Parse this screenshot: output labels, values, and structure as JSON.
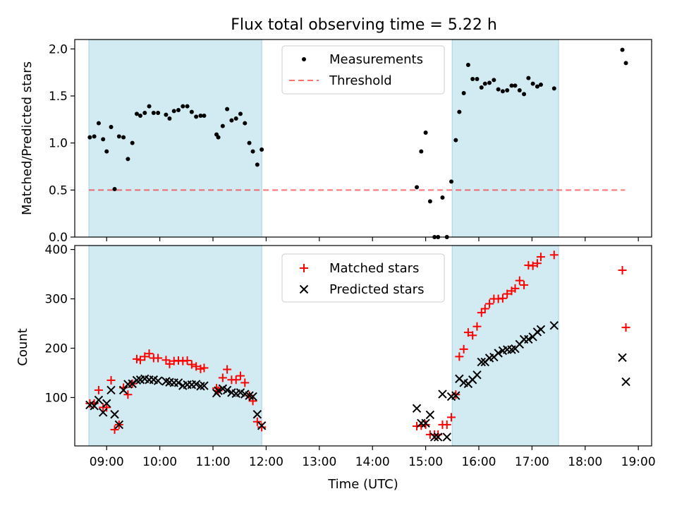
{
  "title": "Flux total observing time = 5.22 h",
  "colors": {
    "shade": "#add8e6",
    "threshold": "#ff0000",
    "matched": "#ff0000",
    "predicted": "#000000",
    "measurement": "#000000"
  },
  "chart_data": [
    {
      "type": "scatter",
      "panel": "top",
      "ylabel": "Matched/Predicted stars",
      "xlim": [
        "08:24",
        "19:15"
      ],
      "ylim": [
        0,
        2.1
      ],
      "yticks": [
        0.0,
        0.5,
        1.0,
        1.5,
        2.0
      ],
      "ytick_labels": [
        "0.0",
        "0.5",
        "1.0",
        "1.5",
        "2.0"
      ],
      "shaded_intervals": [
        [
          "08:40",
          "11:55"
        ],
        [
          "15:30",
          "17:30"
        ]
      ],
      "legend": {
        "position": "top-center",
        "entries": [
          "Measurements",
          "Threshold"
        ]
      },
      "threshold": {
        "name": "Threshold",
        "value": 0.5,
        "x_range": [
          "08:40",
          "18:45"
        ]
      },
      "series": [
        {
          "name": "Measurements",
          "points": [
            [
              "08:41",
              1.06
            ],
            [
              "08:46",
              1.07
            ],
            [
              "08:51",
              1.21
            ],
            [
              "08:56",
              1.04
            ],
            [
              "09:00",
              0.91
            ],
            [
              "09:05",
              1.17
            ],
            [
              "09:09",
              0.51
            ],
            [
              "09:14",
              1.07
            ],
            [
              "09:19",
              1.06
            ],
            [
              "09:24",
              0.83
            ],
            [
              "09:29",
              1.0
            ],
            [
              "09:34",
              1.31
            ],
            [
              "09:38",
              1.29
            ],
            [
              "09:43",
              1.32
            ],
            [
              "09:48",
              1.39
            ],
            [
              "09:53",
              1.32
            ],
            [
              "09:58",
              1.32
            ],
            [
              "10:07",
              1.3
            ],
            [
              "10:11",
              1.26
            ],
            [
              "10:16",
              1.34
            ],
            [
              "10:21",
              1.35
            ],
            [
              "10:26",
              1.39
            ],
            [
              "10:31",
              1.39
            ],
            [
              "10:36",
              1.33
            ],
            [
              "10:41",
              1.28
            ],
            [
              "10:46",
              1.29
            ],
            [
              "10:50",
              1.29
            ],
            [
              "11:04",
              1.09
            ],
            [
              "11:06",
              1.06
            ],
            [
              "11:11",
              1.18
            ],
            [
              "11:16",
              1.36
            ],
            [
              "11:21",
              1.24
            ],
            [
              "11:26",
              1.26
            ],
            [
              "11:31",
              1.31
            ],
            [
              "11:36",
              1.21
            ],
            [
              "11:41",
              1.0
            ],
            [
              "11:45",
              0.91
            ],
            [
              "11:50",
              0.77
            ],
            [
              "11:55",
              0.93
            ],
            [
              "14:50",
              0.53
            ],
            [
              "14:55",
              0.91
            ],
            [
              "15:00",
              1.11
            ],
            [
              "15:05",
              0.38
            ],
            [
              "15:10",
              0.0
            ],
            [
              "15:14",
              0.0
            ],
            [
              "15:19",
              0.42
            ],
            [
              "15:24",
              0.0
            ],
            [
              "15:29",
              0.59
            ],
            [
              "15:34",
              1.03
            ],
            [
              "15:38",
              1.33
            ],
            [
              "15:43",
              1.53
            ],
            [
              "15:48",
              1.83
            ],
            [
              "15:53",
              1.68
            ],
            [
              "15:58",
              1.68
            ],
            [
              "16:03",
              1.59
            ],
            [
              "16:07",
              1.63
            ],
            [
              "16:12",
              1.64
            ],
            [
              "16:17",
              1.67
            ],
            [
              "16:22",
              1.57
            ],
            [
              "16:27",
              1.55
            ],
            [
              "16:32",
              1.56
            ],
            [
              "16:37",
              1.61
            ],
            [
              "16:41",
              1.61
            ],
            [
              "16:46",
              1.56
            ],
            [
              "16:51",
              1.52
            ],
            [
              "16:56",
              1.69
            ],
            [
              "17:01",
              1.63
            ],
            [
              "17:06",
              1.6
            ],
            [
              "17:10",
              1.62
            ],
            [
              "17:25",
              1.58
            ],
            [
              "18:42",
              1.99
            ],
            [
              "18:46",
              1.85
            ]
          ]
        }
      ]
    },
    {
      "type": "scatter",
      "panel": "bottom",
      "xlabel": "Time (UTC)",
      "ylabel": "Count",
      "xlim": [
        "08:24",
        "19:15"
      ],
      "ylim": [
        2,
        408
      ],
      "yticks": [
        100,
        200,
        300,
        400
      ],
      "ytick_labels": [
        "100",
        "200",
        "300",
        "400"
      ],
      "xticks": [
        "09:00",
        "10:00",
        "11:00",
        "12:00",
        "13:00",
        "14:00",
        "15:00",
        "16:00",
        "17:00",
        "18:00",
        "19:00"
      ],
      "xtick_labels": [
        "09:00",
        "10:00",
        "11:00",
        "12:00",
        "13:00",
        "14:00",
        "15:00",
        "16:00",
        "17:00",
        "18:00",
        "19:00"
      ],
      "shaded_intervals": [
        [
          "08:40",
          "11:55"
        ],
        [
          "15:30",
          "17:30"
        ]
      ],
      "legend": {
        "position": "top-center",
        "entries": [
          "Matched stars",
          "Predicted stars"
        ]
      },
      "series": [
        {
          "name": "Matched stars",
          "marker": "plus",
          "points": [
            [
              "08:41",
              88
            ],
            [
              "08:46",
              88
            ],
            [
              "08:51",
              115
            ],
            [
              "08:56",
              80
            ],
            [
              "09:00",
              80
            ],
            [
              "09:05",
              135
            ],
            [
              "09:09",
              35
            ],
            [
              "09:14",
              45
            ],
            [
              "09:19",
              120
            ],
            [
              "09:24",
              106
            ],
            [
              "09:29",
              128
            ],
            [
              "09:34",
              178
            ],
            [
              "09:38",
              176
            ],
            [
              "09:43",
              183
            ],
            [
              "09:48",
              189
            ],
            [
              "09:53",
              180
            ],
            [
              "09:58",
              180
            ],
            [
              "10:07",
              176
            ],
            [
              "10:11",
              168
            ],
            [
              "10:16",
              174
            ],
            [
              "10:21",
              175
            ],
            [
              "10:26",
              174
            ],
            [
              "10:31",
              175
            ],
            [
              "10:36",
              167
            ],
            [
              "10:41",
              163
            ],
            [
              "10:46",
              158
            ],
            [
              "10:50",
              160
            ],
            [
              "11:04",
              119
            ],
            [
              "11:06",
              114
            ],
            [
              "11:11",
              140
            ],
            [
              "11:16",
              157
            ],
            [
              "11:21",
              136
            ],
            [
              "11:26",
              136
            ],
            [
              "11:31",
              144
            ],
            [
              "11:36",
              130
            ],
            [
              "11:41",
              104
            ],
            [
              "11:45",
              93
            ],
            [
              "11:50",
              51
            ],
            [
              "11:55",
              40
            ],
            [
              "14:50",
              42
            ],
            [
              "14:55",
              43
            ],
            [
              "15:00",
              45
            ],
            [
              "15:05",
              25
            ],
            [
              "15:10",
              25
            ],
            [
              "15:14",
              25
            ],
            [
              "15:19",
              45
            ],
            [
              "15:24",
              45
            ],
            [
              "15:29",
              60
            ],
            [
              "15:34",
              106
            ],
            [
              "15:38",
              183
            ],
            [
              "15:43",
              198
            ],
            [
              "15:48",
              232
            ],
            [
              "15:53",
              226
            ],
            [
              "15:58",
              244
            ],
            [
              "16:03",
              272
            ],
            [
              "16:07",
              280
            ],
            [
              "16:12",
              290
            ],
            [
              "16:17",
              300
            ],
            [
              "16:22",
              300
            ],
            [
              "16:27",
              301
            ],
            [
              "16:32",
              310
            ],
            [
              "16:37",
              316
            ],
            [
              "16:41",
              321
            ],
            [
              "16:46",
              337
            ],
            [
              "16:51",
              328
            ],
            [
              "16:56",
              368
            ],
            [
              "17:01",
              367
            ],
            [
              "17:06",
              372
            ],
            [
              "17:10",
              385
            ],
            [
              "17:25",
              389
            ],
            [
              "18:42",
              358
            ],
            [
              "18:46",
              242
            ]
          ]
        },
        {
          "name": "Predicted stars",
          "marker": "x",
          "points": [
            [
              "08:41",
              85
            ],
            [
              "08:46",
              83
            ],
            [
              "08:51",
              95
            ],
            [
              "08:56",
              70
            ],
            [
              "09:00",
              88
            ],
            [
              "09:05",
              115
            ],
            [
              "09:09",
              66
            ],
            [
              "09:14",
              45
            ],
            [
              "09:19",
              115
            ],
            [
              "09:24",
              127
            ],
            [
              "09:29",
              128
            ],
            [
              "09:34",
              135
            ],
            [
              "09:38",
              136
            ],
            [
              "09:43",
              138
            ],
            [
              "09:48",
              136
            ],
            [
              "09:53",
              136
            ],
            [
              "09:58",
              134
            ],
            [
              "10:07",
              133
            ],
            [
              "10:11",
              131
            ],
            [
              "10:16",
              130
            ],
            [
              "10:21",
              130
            ],
            [
              "10:26",
              124
            ],
            [
              "10:31",
              126
            ],
            [
              "10:36",
              126
            ],
            [
              "10:41",
              127
            ],
            [
              "10:46",
              123
            ],
            [
              "10:50",
              124
            ],
            [
              "11:04",
              109
            ],
            [
              "11:06",
              114
            ],
            [
              "11:11",
              118
            ],
            [
              "11:16",
              115
            ],
            [
              "11:21",
              110
            ],
            [
              "11:26",
              108
            ],
            [
              "11:31",
              110
            ],
            [
              "11:36",
              107
            ],
            [
              "11:41",
              104
            ],
            [
              "11:45",
              102
            ],
            [
              "11:50",
              66
            ],
            [
              "11:55",
              43
            ],
            [
              "14:50",
              78
            ],
            [
              "14:55",
              48
            ],
            [
              "15:00",
              48
            ],
            [
              "15:05",
              65
            ],
            [
              "15:10",
              20
            ],
            [
              "15:14",
              20
            ],
            [
              "15:19",
              107
            ],
            [
              "15:24",
              20
            ],
            [
              "15:29",
              102
            ],
            [
              "15:34",
              104
            ],
            [
              "15:38",
              138
            ],
            [
              "15:43",
              130
            ],
            [
              "15:48",
              128
            ],
            [
              "15:53",
              136
            ],
            [
              "15:58",
              146
            ],
            [
              "16:03",
              172
            ],
            [
              "16:07",
              172
            ],
            [
              "16:12",
              180
            ],
            [
              "16:17",
              182
            ],
            [
              "16:22",
              190
            ],
            [
              "16:27",
              195
            ],
            [
              "16:32",
              197
            ],
            [
              "16:37",
              197
            ],
            [
              "16:41",
              199
            ],
            [
              "16:46",
              208
            ],
            [
              "16:51",
              218
            ],
            [
              "16:56",
              218
            ],
            [
              "17:01",
              223
            ],
            [
              "17:06",
              233
            ],
            [
              "17:10",
              238
            ],
            [
              "17:25",
              246
            ],
            [
              "18:42",
              181
            ],
            [
              "18:46",
              132
            ]
          ]
        }
      ]
    }
  ]
}
